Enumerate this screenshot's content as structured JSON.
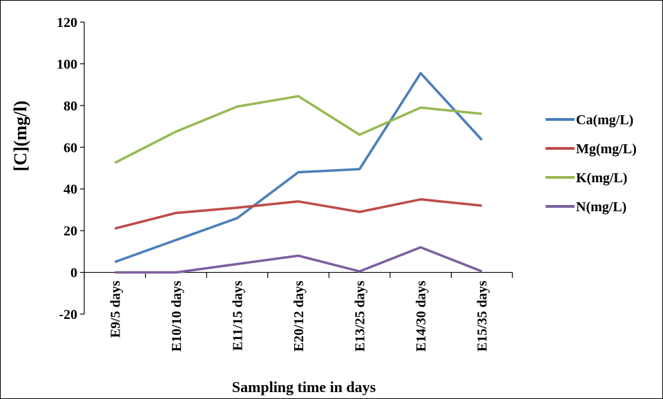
{
  "chart_data": {
    "type": "line",
    "title": "",
    "xlabel": "Sampling time in days",
    "ylabel": "[C](mg/l)",
    "ylim": [
      -20,
      120
    ],
    "yticks": [
      -20,
      0,
      20,
      40,
      60,
      80,
      100,
      120
    ],
    "grid": false,
    "legend_position": "right",
    "categories": [
      "E9/5 days",
      "E10/10 days",
      "E11/15 days",
      "E20/12 days",
      "E13/25 days",
      "E14/30 days",
      "E15/35 days"
    ],
    "series": [
      {
        "name": "Ca(mg/L)",
        "color": "#4a7ebb",
        "values": [
          5,
          15.5,
          26,
          48,
          49.5,
          95.5,
          63.5
        ]
      },
      {
        "name": "Mg(mg/L)",
        "color": "#be4b48",
        "values": [
          21,
          28.5,
          31,
          34,
          29,
          35,
          32
        ]
      },
      {
        "name": "K(mg/L)",
        "color": "#98b954",
        "values": [
          52.5,
          67.5,
          79.5,
          84.5,
          66,
          79,
          76
        ]
      },
      {
        "name": "N(mg/L)",
        "color": "#7d5fa0",
        "values": [
          0,
          0,
          4,
          8,
          0.5,
          12,
          0.5
        ]
      }
    ]
  }
}
